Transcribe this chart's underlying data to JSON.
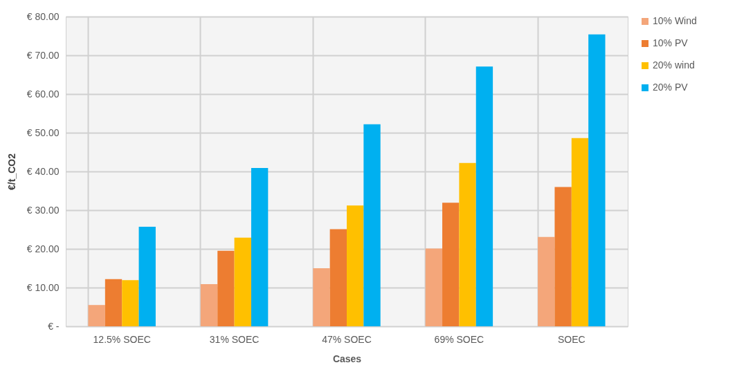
{
  "chart_data": {
    "type": "bar",
    "xlabel": "Cases",
    "ylabel": "€/t_CO2",
    "categories": [
      "12.5% SOEC",
      "31% SOEC",
      "47% SOEC",
      "69% SOEC",
      "SOEC"
    ],
    "series": [
      {
        "name": "10% Wind",
        "color": "#f4a67a",
        "values": [
          5.5,
          10.9,
          15.0,
          20.1,
          23.1
        ]
      },
      {
        "name": "10% PV",
        "color": "#ed7d31",
        "values": [
          12.2,
          19.5,
          25.1,
          31.9,
          36.0
        ]
      },
      {
        "name": "20% wind",
        "color": "#ffc000",
        "values": [
          11.9,
          22.9,
          31.2,
          42.2,
          48.6
        ]
      },
      {
        "name": "20% PV",
        "color": "#00b0f0",
        "values": [
          25.7,
          40.9,
          52.2,
          67.1,
          75.4
        ]
      }
    ],
    "ylim": [
      0,
      80
    ],
    "yticks": [
      {
        "value": 0,
        "label": "€ -"
      },
      {
        "value": 10,
        "label": "€ 10.00"
      },
      {
        "value": 20,
        "label": "€ 20.00"
      },
      {
        "value": 30,
        "label": "€ 30.00"
      },
      {
        "value": 40,
        "label": "€ 40.00"
      },
      {
        "value": 50,
        "label": "€ 50.00"
      },
      {
        "value": 60,
        "label": "€ 60.00"
      },
      {
        "value": 70,
        "label": "€ 70.00"
      },
      {
        "value": 80,
        "label": "€ 80.00"
      }
    ],
    "grid": true,
    "legend": "right"
  }
}
